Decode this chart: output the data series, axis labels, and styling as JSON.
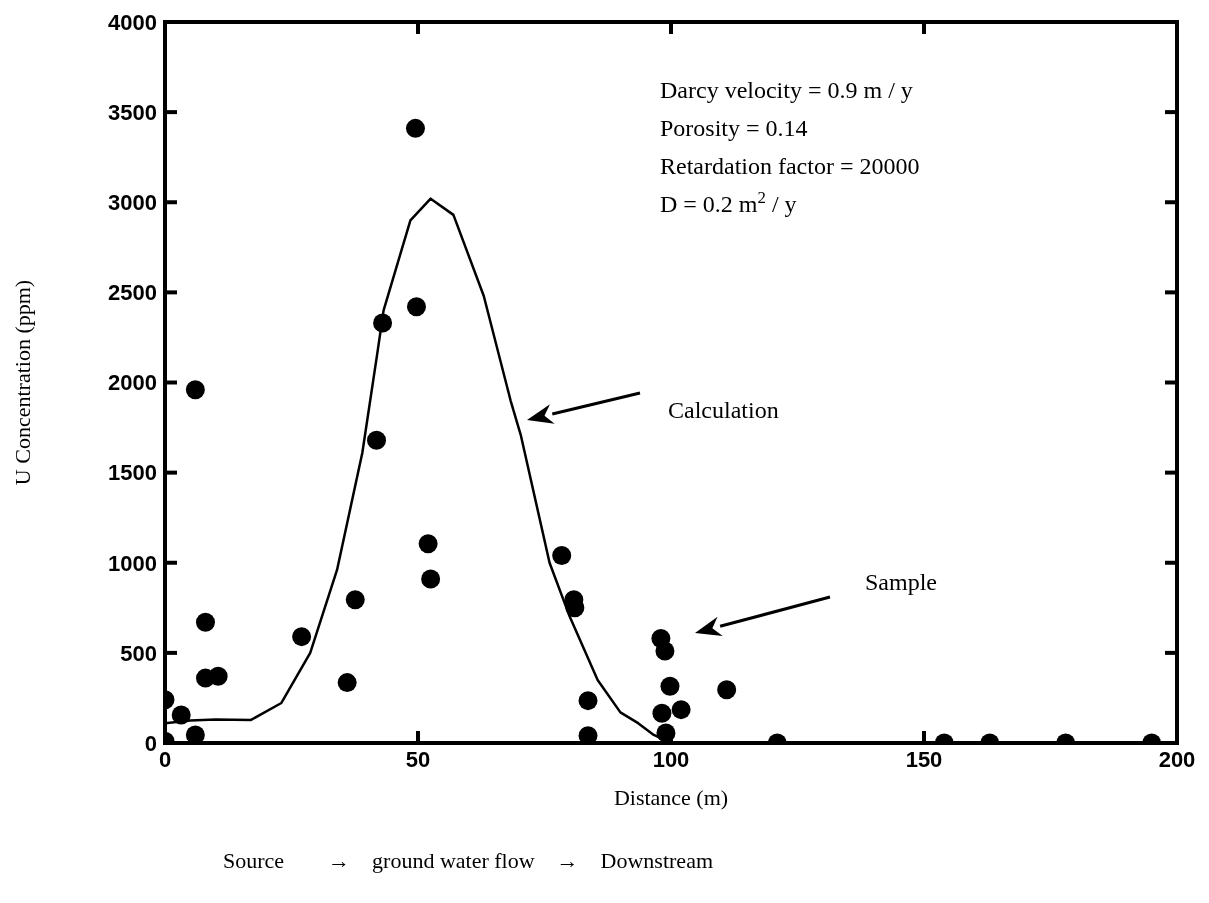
{
  "chart_data": {
    "type": "scatter",
    "xlabel": "Distance (m)",
    "ylabel": "U Concentration (ppm)",
    "xlim": [
      0,
      200
    ],
    "xticks": [
      0,
      50,
      100,
      150,
      200
    ],
    "ylim": [
      0,
      4000
    ],
    "yticks": [
      0,
      500,
      1000,
      1500,
      2000,
      2500,
      3000,
      3500,
      4000
    ],
    "grid": false,
    "legend": false,
    "marker": "circle",
    "series": [
      {
        "color": "#000000",
        "x": [
          0,
          0,
          3.2,
          6,
          6,
          8,
          8,
          10.5,
          27,
          36,
          37.6,
          41.8,
          43,
          49.5,
          49.7,
          52,
          52.5,
          78.4,
          80.8,
          81,
          83.6,
          83.6,
          98,
          98.8,
          99.8,
          98.2,
          102,
          99,
          111,
          121,
          154,
          163,
          178,
          195
        ],
        "values": [
          10,
          240,
          155,
          45,
          1960,
          670,
          360,
          370,
          590,
          335,
          795,
          1680,
          2330,
          3410,
          2420,
          1105,
          910,
          1040,
          795,
          750,
          235,
          40,
          580,
          510,
          315,
          165,
          185,
          55,
          295,
          0,
          0,
          0,
          0,
          0
        ]
      },
      {
        "type": "line",
        "color": "#000000",
        "line_style": "solid",
        "marker": "none",
        "x": [
          0,
          5,
          10,
          17,
          23,
          28.7,
          34,
          39,
          42,
          43.2,
          48.5,
          52.5,
          57,
          63,
          68.3,
          70.3,
          76,
          80,
          85.5,
          90,
          93.5,
          96.6,
          100,
          200
        ],
        "values": [
          110,
          125,
          130,
          128,
          222,
          500,
          960,
          1610,
          2170,
          2400,
          2900,
          3020,
          2930,
          2480,
          1900,
          1710,
          1000,
          700,
          350,
          170,
          110,
          45,
          0,
          0
        ]
      }
    ],
    "annotations": [
      "Darcy velocity = 0.9 m / y",
      "Porosity = 0.14",
      "Retardation factor = 20000",
      "D = 0.2 m$^{2}$ / y",
      "Calculation",
      "Sample",
      "Source        →    ground water flow    →    Downstream"
    ]
  }
}
